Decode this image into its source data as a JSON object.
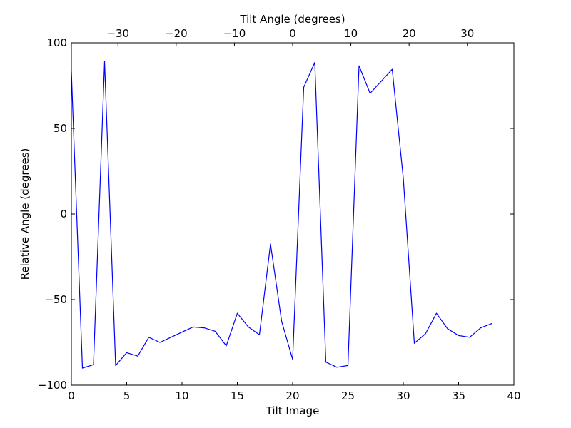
{
  "chart_data": {
    "type": "line",
    "title": "",
    "xlabel": "Tilt Image",
    "ylabel": "Relative Angle (degrees)",
    "top_xlabel": "Tilt Angle (degrees)",
    "xlim": [
      0,
      40
    ],
    "ylim": [
      -100,
      100
    ],
    "xticks": [
      0,
      5,
      10,
      15,
      20,
      25,
      30,
      35,
      40
    ],
    "yticks": [
      -100,
      -50,
      0,
      50,
      100
    ],
    "xtick_labels": [
      "0",
      "5",
      "10",
      "15",
      "20",
      "25",
      "30",
      "35",
      "40"
    ],
    "ytick_labels": [
      "−100",
      "−50",
      "0",
      "50",
      "100"
    ],
    "top_xlim": [
      -38,
      38
    ],
    "top_xticks": [
      -30,
      -20,
      -10,
      0,
      10,
      20,
      30
    ],
    "top_xtick_labels": [
      "−30",
      "−20",
      "−10",
      "0",
      "10",
      "20",
      "30"
    ],
    "grid": false,
    "series": [
      {
        "color": "#0000ff",
        "x": [
          0,
          1,
          2,
          3,
          4,
          5,
          6,
          7,
          8,
          9,
          10,
          11,
          12,
          13,
          14,
          15,
          16,
          17,
          18,
          19,
          20,
          21,
          22,
          23,
          24,
          25,
          26,
          27,
          28,
          29,
          30,
          31,
          32,
          33,
          34,
          35,
          36,
          37,
          38
        ],
        "y": [
          83,
          -90,
          -88,
          89,
          -88.5,
          -81,
          -83,
          -72,
          -75,
          -72,
          -69,
          -66,
          -66.5,
          -68.5,
          -77,
          -58,
          -66,
          -70.5,
          -17.5,
          -62.5,
          -85,
          74,
          88.5,
          -86.5,
          -89.5,
          -88.5,
          86.5,
          70.5,
          77.5,
          84.5,
          21,
          -75.5,
          -70,
          -58,
          -67,
          -71,
          -72,
          -66.5,
          -64
        ]
      }
    ]
  }
}
